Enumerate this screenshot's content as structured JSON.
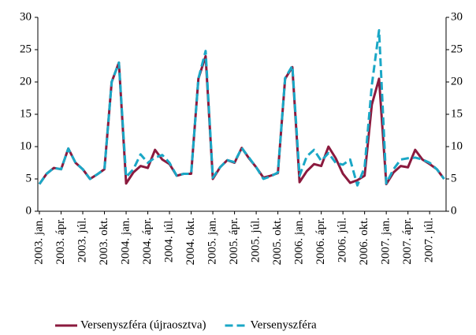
{
  "chart_data": {
    "type": "line",
    "categories": [
      "2003. jan.",
      null,
      null,
      "2003. ápr.",
      null,
      null,
      "2003. júl.",
      null,
      null,
      "2003. okt.",
      null,
      null,
      "2004. jan.",
      null,
      null,
      "2004. ápr.",
      null,
      null,
      "2004. júl.",
      null,
      null,
      "2004. okt.",
      null,
      null,
      "2005. jan.",
      null,
      null,
      "2005. ápr.",
      null,
      null,
      "2005. júl.",
      null,
      null,
      "2005. okt.",
      null,
      null,
      "2006. jan.",
      null,
      null,
      "2006. ápr.",
      null,
      null,
      "2006. júl.",
      null,
      null,
      "2006. okt.",
      null,
      null,
      "2007. jan.",
      null,
      null,
      "2007. ápr.",
      null,
      null,
      "2007. júl.",
      null,
      null
    ],
    "series": [
      {
        "name": "Versenyszféra (újraosztva)",
        "color": "#8b1a3e",
        "dashed": false,
        "values": [
          4.2,
          5.8,
          6.7,
          6.5,
          9.7,
          7.5,
          6.5,
          5,
          5.7,
          6.5,
          20,
          23,
          4.3,
          6,
          7,
          6.7,
          9.5,
          8,
          7.3,
          5.5,
          5.8,
          5.8,
          20.5,
          24,
          5,
          6.8,
          7.9,
          7.5,
          9.8,
          8.2,
          6.8,
          5.2,
          5.5,
          5.9,
          20.5,
          22.3,
          4.5,
          6.2,
          7.3,
          7,
          10,
          8.2,
          5.8,
          4.4,
          4.8,
          5.5,
          16.5,
          20.5,
          4.2,
          6,
          7,
          6.8,
          9.5,
          8,
          7.3,
          6.5,
          5
        ]
      },
      {
        "name": "Versenyszféra",
        "color": "#1aa7c6",
        "dashed": true,
        "values": [
          4.2,
          5.8,
          6.7,
          6.5,
          9.7,
          7.5,
          6.5,
          5,
          5.7,
          6.5,
          20,
          23,
          5.3,
          6.5,
          8.8,
          7.5,
          8.3,
          8.7,
          7.5,
          5.5,
          5.8,
          5.8,
          20.5,
          24.8,
          5.2,
          6.8,
          7.9,
          7.6,
          9.8,
          8.3,
          6.8,
          5,
          5.4,
          6,
          20.6,
          22.5,
          5.5,
          8.5,
          9.5,
          7.8,
          9,
          7.5,
          7.2,
          8,
          4,
          6.8,
          19.5,
          28,
          4.3,
          6.5,
          8,
          8.2,
          8.3,
          8,
          7.5,
          6.5,
          5
        ]
      }
    ],
    "ylim": [
      0,
      30
    ],
    "yticks": [
      0,
      5,
      10,
      15,
      20,
      25,
      30
    ],
    "y2lim": [
      0,
      30
    ],
    "y2ticks": [
      0,
      5,
      10,
      15,
      20,
      25,
      30
    ],
    "legend": "bottom"
  }
}
